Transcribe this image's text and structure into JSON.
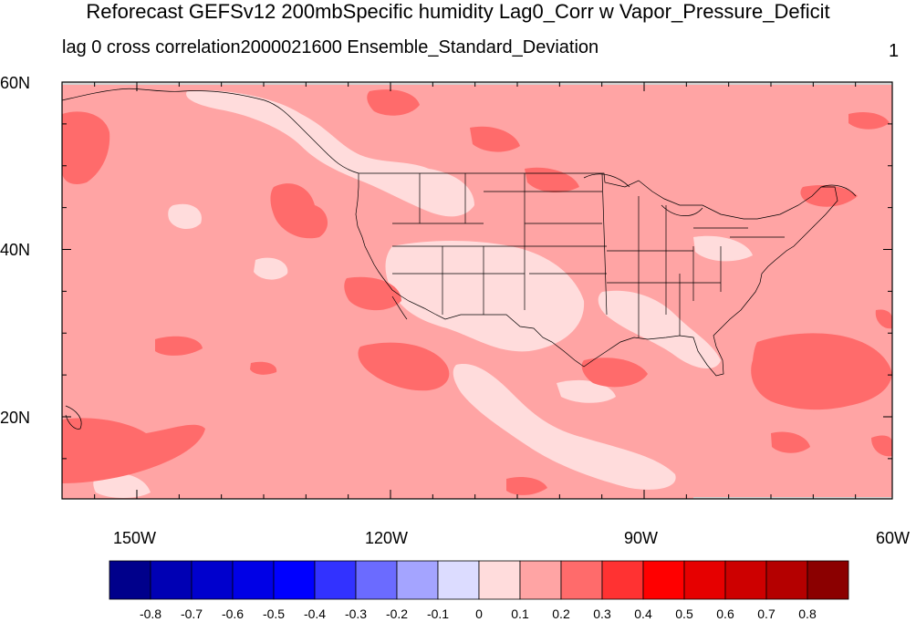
{
  "title": "Reforecast GEFSv12 200mbSpecific humidity Lag0_Corr w Vapor_Pressure_Deficit",
  "subtitle": "lag 0 cross correlation2000021600 Ensemble_Standard_Deviation",
  "corner_label": "1",
  "map": {
    "lat_labels": [
      "60N",
      "40N",
      "20N"
    ],
    "lon_labels": [
      "150W",
      "120W",
      "90W",
      "60W"
    ],
    "lat_range": [
      10,
      60
    ],
    "lon_range": [
      -160,
      -60
    ]
  },
  "colorbar": {
    "labels": [
      "-0.8",
      "-0.7",
      "-0.6",
      "-0.5",
      "-0.4",
      "-0.3",
      "-0.2",
      "-0.1",
      "0",
      "0.1",
      "0.2",
      "0.3",
      "0.4",
      "0.5",
      "0.6",
      "0.7",
      "0.8"
    ],
    "colors": [
      "#00008b",
      "#0000b4",
      "#0000cd",
      "#0000e6",
      "#0000ff",
      "#3232ff",
      "#6b6bff",
      "#a4a4ff",
      "#dcdcff",
      "#ffdcdc",
      "#ffa4a4",
      "#ff6b6b",
      "#ff3232",
      "#ff0000",
      "#e60000",
      "#cd0000",
      "#b40000",
      "#8b0000"
    ]
  },
  "fill_colors": {
    "base": "#ffa4a4",
    "low": "#ffdcdc",
    "high": "#ff6b6b",
    "missing": "#d3d3d3"
  }
}
